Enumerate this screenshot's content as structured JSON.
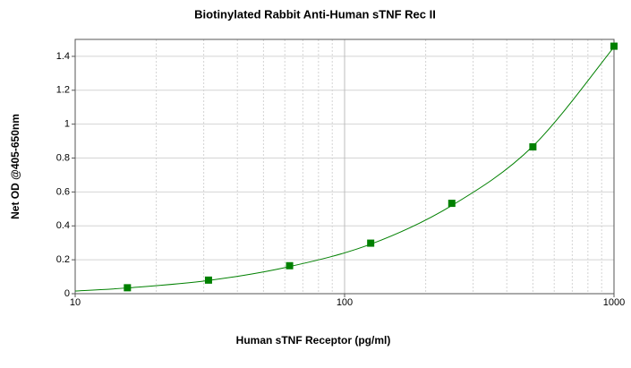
{
  "chart_data": {
    "type": "scatter",
    "title": "Biotinylated Rabbit Anti-Human sTNF Rec II",
    "x_label": "Human sTNF Receptor (pg/ml)",
    "y_label": "Net OD @405-650nm",
    "xscale": "log",
    "xlim": [
      10,
      1000
    ],
    "xticks": [
      10,
      100,
      1000
    ],
    "xminorticks": [
      20,
      30,
      40,
      50,
      60,
      70,
      80,
      90,
      200,
      300,
      400,
      500,
      600,
      700,
      800,
      900
    ],
    "ylim": [
      0,
      1.5
    ],
    "yticks": [
      0,
      0.2,
      0.4,
      0.6,
      0.8,
      1,
      1.2,
      1.4
    ],
    "grid": true,
    "series": [
      {
        "color": "#008000",
        "x": [
          15.625,
          31.25,
          62.5,
          125,
          250,
          500,
          1000
        ],
        "values": [
          0.035,
          0.08,
          0.165,
          0.298,
          0.533,
          0.866,
          1.46
        ]
      },
      {
        "color": "#008000",
        "kind": "line",
        "x": [
          10,
          15.625,
          31.25,
          62.5,
          125,
          250,
          500,
          1000
        ],
        "values": [
          0.016,
          0.034,
          0.078,
          0.16,
          0.292,
          0.52,
          0.87,
          1.455
        ]
      }
    ]
  }
}
